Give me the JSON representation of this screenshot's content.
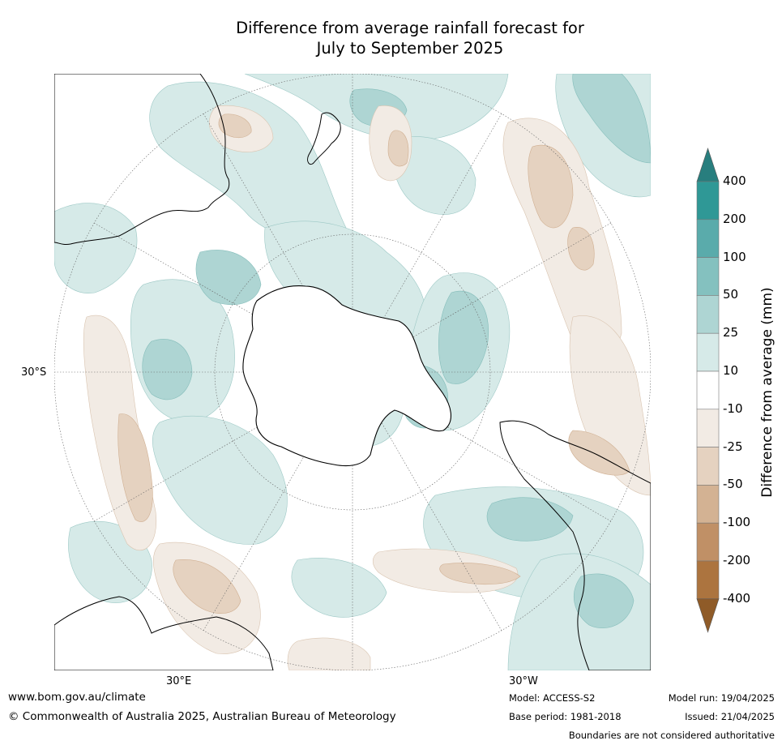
{
  "title_line1": "Difference from average rainfall forecast for",
  "title_line2": "July to September 2025",
  "map": {
    "projection": "south-polar stereographic",
    "graticule_labels": {
      "lat_left": "30°S",
      "lon_bottom_left": "30°E",
      "lon_bottom_right": "30°W"
    },
    "colors": {
      "wet_25": "#d6eae8",
      "wet_50": "#aed5d3",
      "wet_100": "#84c1bf",
      "dry_25": "#f2ebe4",
      "dry_50": "#e5d2c0",
      "land_outline": "#000000"
    }
  },
  "colorbar": {
    "title": "Difference from average (mm)",
    "ticks": [
      "400",
      "200",
      "100",
      "50",
      "25",
      "10",
      "-10",
      "-25",
      "-50",
      "-100",
      "-200",
      "-400"
    ],
    "colors": [
      "#287e7e",
      "#2f9896",
      "#5aabab",
      "#84c1bf",
      "#aed5d3",
      "#d6eae8",
      "#ffffff",
      "#f2ebe4",
      "#e5d2c0",
      "#d3b293",
      "#c09066",
      "#ac743f",
      "#8f5b28"
    ]
  },
  "footer": {
    "url": "www.bom.gov.au/climate",
    "copyright": "© Commonwealth of Australia 2025, Australian Bureau of Meteorology",
    "model": "Model: ACCESS-S2",
    "base_period": "Base period: 1981-2018",
    "model_run": "Model run: 19/04/2025",
    "issued": "Issued: 21/04/2025",
    "disclaimer": "Boundaries are not considered authoritative"
  }
}
